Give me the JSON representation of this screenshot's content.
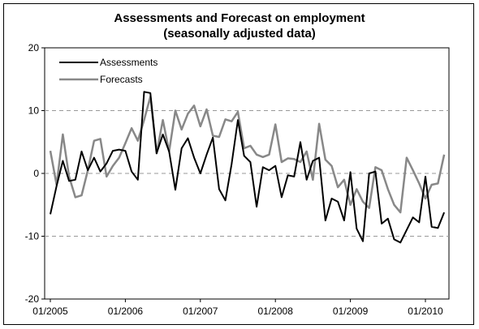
{
  "chart_data": {
    "type": "line",
    "title_line1": "Assessments and Forecast on employment",
    "title_line2": "(seasonally adjusted data)",
    "xlabel": "",
    "ylabel": "",
    "ylim": [
      -20,
      20
    ],
    "yticks": [
      "20",
      "10",
      "0",
      "-10",
      "-20"
    ],
    "xticks": [
      "01/2005",
      "01/2006",
      "01/2007",
      "01/2008",
      "01/2009",
      "01/2010"
    ],
    "grid": "dashed horizontal at 10, 0, -10",
    "legend_position": "top-left",
    "x_start": "01/2005",
    "series": [
      {
        "name": "Assessments",
        "color": "#000000",
        "values": [
          -6.5,
          -2,
          2,
          -1.2,
          -1,
          3.5,
          0.5,
          2.5,
          0.3,
          1.6,
          3.6,
          3.8,
          3.6,
          0.3,
          -1,
          13,
          12.8,
          3.2,
          6.2,
          3.5,
          -2.6,
          4,
          5.6,
          2.5,
          0,
          3,
          5.7,
          -2.5,
          -4.3,
          1.5,
          8.5,
          2.8,
          1.8,
          -5.3,
          1,
          0.5,
          1.2,
          -3.8,
          -0.3,
          -0.5,
          5,
          -1,
          2,
          2.5,
          -7.5,
          -4,
          -4.5,
          -7.5,
          0.2,
          -8.8,
          -10.8,
          0,
          0.3,
          -8,
          -7.2,
          -10.5,
          -11,
          -9,
          -7,
          -7.8,
          -0.5,
          -8.5,
          -8.7,
          -6.2
        ]
      },
      {
        "name": "Forecasts",
        "color": "#888888",
        "values": [
          3.6,
          -1.8,
          6.2,
          -0.5,
          -3.8,
          -3.5,
          0.5,
          5.2,
          5.5,
          -0.5,
          1.2,
          2.5,
          4.8,
          7.2,
          5.2,
          8.5,
          12.2,
          3.2,
          8.5,
          3.5,
          10,
          7,
          9.5,
          10.8,
          7.5,
          10.2,
          6,
          5.8,
          8.6,
          8.3,
          9.8,
          4,
          4.4,
          3,
          2.6,
          3,
          7.8,
          1.8,
          2.4,
          2.3,
          1.8,
          3.5,
          -1,
          7.9,
          2.2,
          1.2,
          -2.2,
          -1,
          -5,
          -2.5,
          -4.5,
          -5.5,
          1,
          0.5,
          -2.5,
          -5,
          -6.2,
          2.5,
          0.5,
          -1.6,
          -4,
          -1.8,
          -1.6,
          3
        ]
      }
    ]
  }
}
